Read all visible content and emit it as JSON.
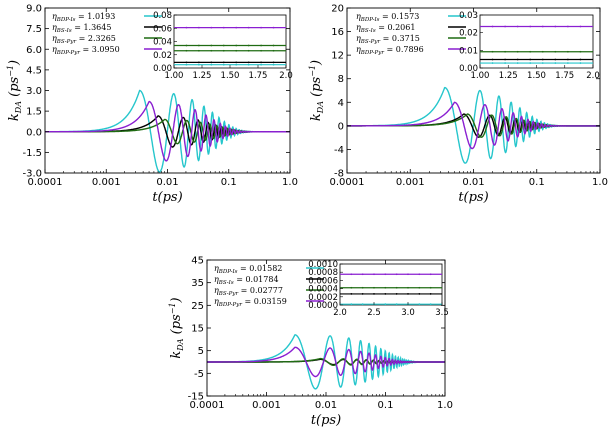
{
  "chart_data": [
    {
      "type": "line",
      "xlabel": "t(ps)",
      "ylabel": "k_DA (ps^-1)",
      "xscale": "log",
      "xlim": [
        0.0001,
        1.0
      ],
      "ylim": [
        -3.0,
        9.0
      ],
      "xticks": [
        "0.0001",
        "0.001",
        "0.01",
        "0.1",
        "1.0"
      ],
      "yticks": [
        "9.0",
        "7.5",
        "6.0",
        "4.5",
        "3.0",
        "1.5",
        "0.0",
        "-1.5",
        "-3.0"
      ],
      "legend_position": "top-left",
      "series": [
        {
          "name": "ηBDP-Is = 1.0193",
          "eta": "1.0193",
          "color": "#26c6cc",
          "peak": 3.0,
          "peak_t": 0.0035,
          "osc_decay_t": 0.09
        },
        {
          "name": "ηBS-Is = 1.3645",
          "eta": "1.3645",
          "color": "#000000",
          "peak": 1.15,
          "peak_t": 0.007,
          "osc_decay_t": 0.09
        },
        {
          "name": "ηBS-Pyr = 2.3265",
          "eta": "2.3265",
          "color": "#1f6b12",
          "peak": 0.9,
          "peak_t": 0.009,
          "osc_decay_t": 0.1
        },
        {
          "name": "ηBDP-Pyr = 3.0950",
          "eta": "3.0950",
          "color": "#8a1fd1",
          "peak": 2.2,
          "peak_t": 0.005,
          "osc_decay_t": 0.08
        }
      ],
      "inset": {
        "xlim": [
          1.0,
          2.0
        ],
        "ylim": [
          0.0,
          0.08
        ],
        "xticks": [
          "1.00",
          "1.25",
          "1.50",
          "1.75",
          "2.0"
        ],
        "yticks": [
          "0.08",
          "0.06",
          "0.04",
          "0.02",
          "0.00"
        ],
        "levels": [
          {
            "color": "#8a1fd1",
            "y": 0.061
          },
          {
            "color": "#1f6b12",
            "y": 0.034
          },
          {
            "color": "#1f6b12",
            "y": 0.026
          },
          {
            "color": "#000000",
            "y": 0.0085
          },
          {
            "color": "#26c6cc",
            "y": 0.005
          }
        ]
      }
    },
    {
      "type": "line",
      "xlabel": "t(ps)",
      "ylabel": "k_DA (ps^-1)",
      "xscale": "log",
      "xlim": [
        0.0001,
        1.0
      ],
      "ylim": [
        -8,
        20
      ],
      "xticks": [
        "0.0001",
        "0.001",
        "0.01",
        "0.1",
        "1.0"
      ],
      "yticks": [
        "20",
        "16",
        "12",
        "8",
        "4",
        "0",
        "-4",
        "-8"
      ],
      "legend_position": "top-left",
      "series": [
        {
          "name": "ηBDP-Is = 0.1573",
          "eta": "0.1573",
          "color": "#26c6cc",
          "peak": 6.5,
          "peak_t": 0.0035,
          "osc_decay_t": 0.09
        },
        {
          "name": "ηBS-Is = 0.2061",
          "eta": "0.2061",
          "color": "#000000",
          "peak": 2.0,
          "peak_t": 0.007,
          "osc_decay_t": 0.09
        },
        {
          "name": "ηBS-Pyr = 0.3715",
          "eta": "0.3715",
          "color": "#1f6b12",
          "peak": 2.0,
          "peak_t": 0.008,
          "osc_decay_t": 0.1
        },
        {
          "name": "ηBDP-Pyr = 0.7896",
          "eta": "0.7896",
          "color": "#8a1fd1",
          "peak": 4.0,
          "peak_t": 0.005,
          "osc_decay_t": 0.08
        }
      ],
      "inset": {
        "xlim": [
          1.0,
          2.0
        ],
        "ylim": [
          0.0,
          0.03
        ],
        "xticks": [
          "1.00",
          "1.25",
          "1.50",
          "1.75",
          "2.0"
        ],
        "yticks": [
          "0.03",
          "0.02",
          "0.01",
          "0.00"
        ],
        "levels": [
          {
            "color": "#8a1fd1",
            "y": 0.0235
          },
          {
            "color": "#1f6b12",
            "y": 0.0092
          },
          {
            "color": "#000000",
            "y": 0.0048
          },
          {
            "color": "#26c6cc",
            "y": 0.0028
          }
        ]
      }
    },
    {
      "type": "line",
      "xlabel": "t(ps)",
      "ylabel": "k_DA (ps^-1)",
      "xscale": "log",
      "xlim": [
        0.0001,
        1.0
      ],
      "ylim": [
        -15,
        45
      ],
      "xticks": [
        "0.0001",
        "0.001",
        "0.01",
        "0.1",
        "1.0"
      ],
      "yticks": [
        "45",
        "35",
        "25",
        "15",
        "5",
        "-5",
        "-15"
      ],
      "legend_position": "top-left",
      "series": [
        {
          "name": "ηBDP-Is = 0.01582",
          "eta": "0.01582",
          "color": "#26c6cc",
          "peak": 12.0,
          "peak_t": 0.003,
          "osc_decay_t": 0.15
        },
        {
          "name": "ηBS-Is = 0.01784",
          "eta": "0.01784",
          "color": "#000000",
          "peak": 1.2,
          "peak_t": 0.008,
          "osc_decay_t": 0.12
        },
        {
          "name": "ηBS-Pyr = 0.02777",
          "eta": "0.02777",
          "color": "#1f6b12",
          "peak": 1.5,
          "peak_t": 0.008,
          "osc_decay_t": 0.12
        },
        {
          "name": "ηBDP-Pyr = 0.03159",
          "eta": "0.03159",
          "color": "#8a1fd1",
          "peak": 6.5,
          "peak_t": 0.003,
          "osc_decay_t": 0.12
        }
      ],
      "inset": {
        "xlim": [
          2.0,
          3.5
        ],
        "ylim": [
          0.0,
          0.001
        ],
        "xticks": [
          "2.0",
          "2.5",
          "3.0",
          "3.5"
        ],
        "yticks": [
          "0.0010",
          "0.0008",
          "0.0006",
          "0.0004",
          "0.0002",
          "0.0000"
        ],
        "levels": [
          {
            "color": "#8a1fd1",
            "y": 0.00075
          },
          {
            "color": "#1f6b12",
            "y": 0.00042
          },
          {
            "color": "#000000",
            "y": 0.00027
          },
          {
            "color": "#26c6cc",
            "y": 2e-05
          }
        ]
      }
    }
  ]
}
